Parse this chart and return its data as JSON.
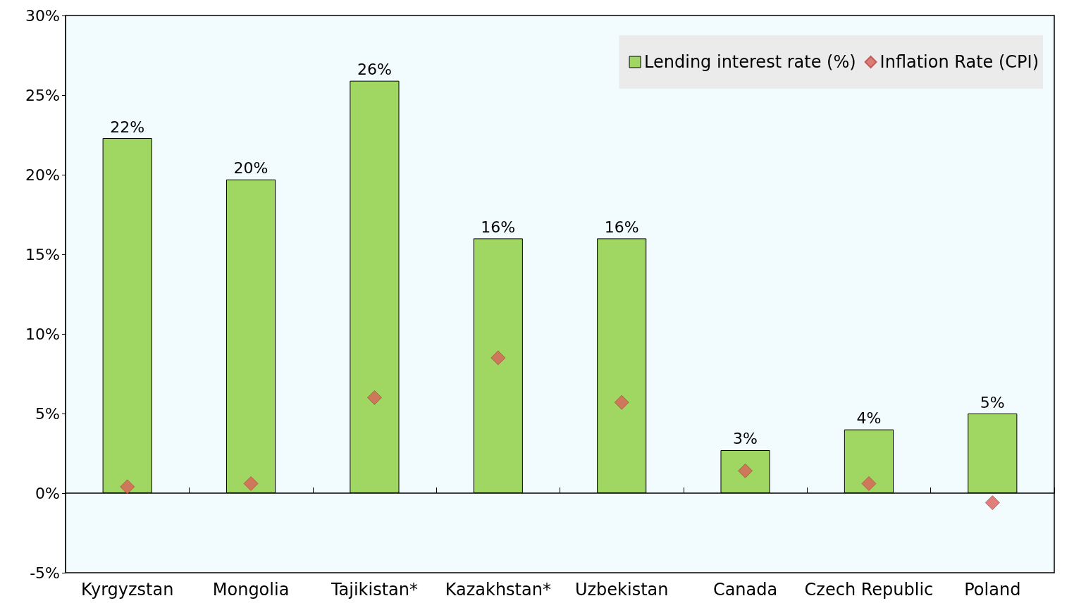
{
  "chart_data": {
    "type": "bar",
    "categories": [
      "Kyrgyzstan",
      "Mongolia",
      "Tajikistan*",
      "Kazakhstan*",
      "Uzbekistan",
      "Canada",
      "Czech Republic",
      "Poland"
    ],
    "series": [
      {
        "name": "Lending interest rate (%)",
        "color": "#a0d662",
        "values": [
          22.3,
          19.7,
          25.9,
          16.0,
          16.0,
          2.7,
          4.0,
          5.0
        ],
        "value_labels": [
          "22%",
          "20%",
          "26%",
          "16%",
          "16%",
          "3%",
          "4%",
          "5%"
        ]
      },
      {
        "name": "Inflation Rate (CPI)",
        "type": "scatter",
        "color": "#d9605a",
        "marker": "diamond",
        "values": [
          0.4,
          0.6,
          6.0,
          8.5,
          5.7,
          1.4,
          0.6,
          -0.6
        ]
      }
    ],
    "ylim": [
      -5,
      30
    ],
    "yticks": [
      {
        "value": -5,
        "label": "-5%"
      },
      {
        "value": 0,
        "label": "0%"
      },
      {
        "value": 5,
        "label": "5%"
      },
      {
        "value": 10,
        "label": "10%"
      },
      {
        "value": 15,
        "label": "15%"
      },
      {
        "value": 20,
        "label": "20%"
      },
      {
        "value": 25,
        "label": "25%"
      },
      {
        "value": 30,
        "label": "30%"
      }
    ],
    "legend": "top right"
  }
}
